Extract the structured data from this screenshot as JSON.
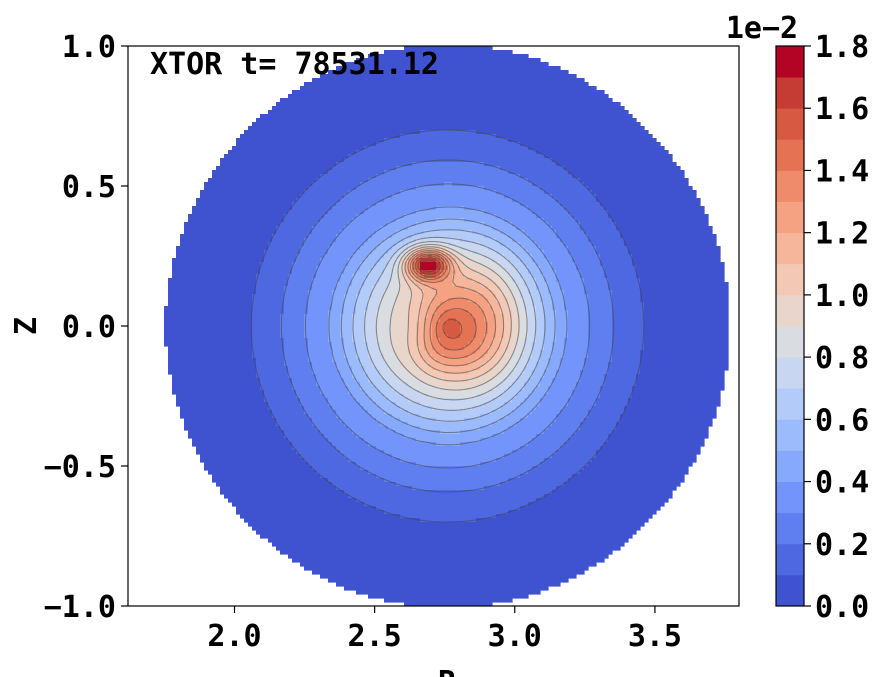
{
  "chart_data": {
    "type": "contour",
    "title": "XTOR t= 78531.12",
    "xlabel": "R",
    "ylabel": "Z",
    "xlim": [
      1.62,
      3.8
    ],
    "ylim": [
      -1.0,
      1.0
    ],
    "xticks": [
      2.0,
      2.5,
      3.0,
      3.5
    ],
    "xtick_labels": [
      "2.0",
      "2.5",
      "3.0",
      "3.5"
    ],
    "yticks": [
      1.0,
      0.5,
      0.0,
      -0.5,
      -1.0
    ],
    "ytick_labels": [
      "1.0",
      "0.5",
      "0.0",
      "−0.5",
      "−1.0"
    ],
    "domain_center": [
      2.76,
      0.0
    ],
    "domain_radius": 1.0,
    "colormap": "coolwarm",
    "levels": [
      0.0,
      0.1,
      0.2,
      0.3,
      0.4,
      0.5,
      0.6,
      0.7,
      0.8,
      0.9,
      1.0,
      1.1,
      1.2,
      1.3,
      1.4,
      1.5,
      1.6,
      1.7,
      1.8
    ],
    "colorbar": {
      "scale_label": "1e−2",
      "ticks": [
        "0.0",
        "0.2",
        "0.4",
        "0.6",
        "0.8",
        "1.0",
        "1.2",
        "1.4",
        "1.6",
        "1.8"
      ],
      "min": 0.0,
      "max": 1.8
    },
    "features": {
      "peak_location": [
        2.69,
        0.22
      ],
      "peak_value": 1.8,
      "plateau_value": 1.35,
      "core_edge_radius": 0.67,
      "outer_value": 0.0
    },
    "level_colors": [
      "#3f53d1",
      "#4e68e1",
      "#5f7ff1",
      "#7394fb",
      "#87a9fd",
      "#9cbbfc",
      "#b3cbf8",
      "#c8d6f1",
      "#d9dce1",
      "#e8d6cc",
      "#f3c9b5",
      "#f6b69c",
      "#f5a283",
      "#ef8a6a",
      "#e67254",
      "#d75941",
      "#c43c33",
      "#b40426"
    ],
    "line_color": "#444444"
  }
}
